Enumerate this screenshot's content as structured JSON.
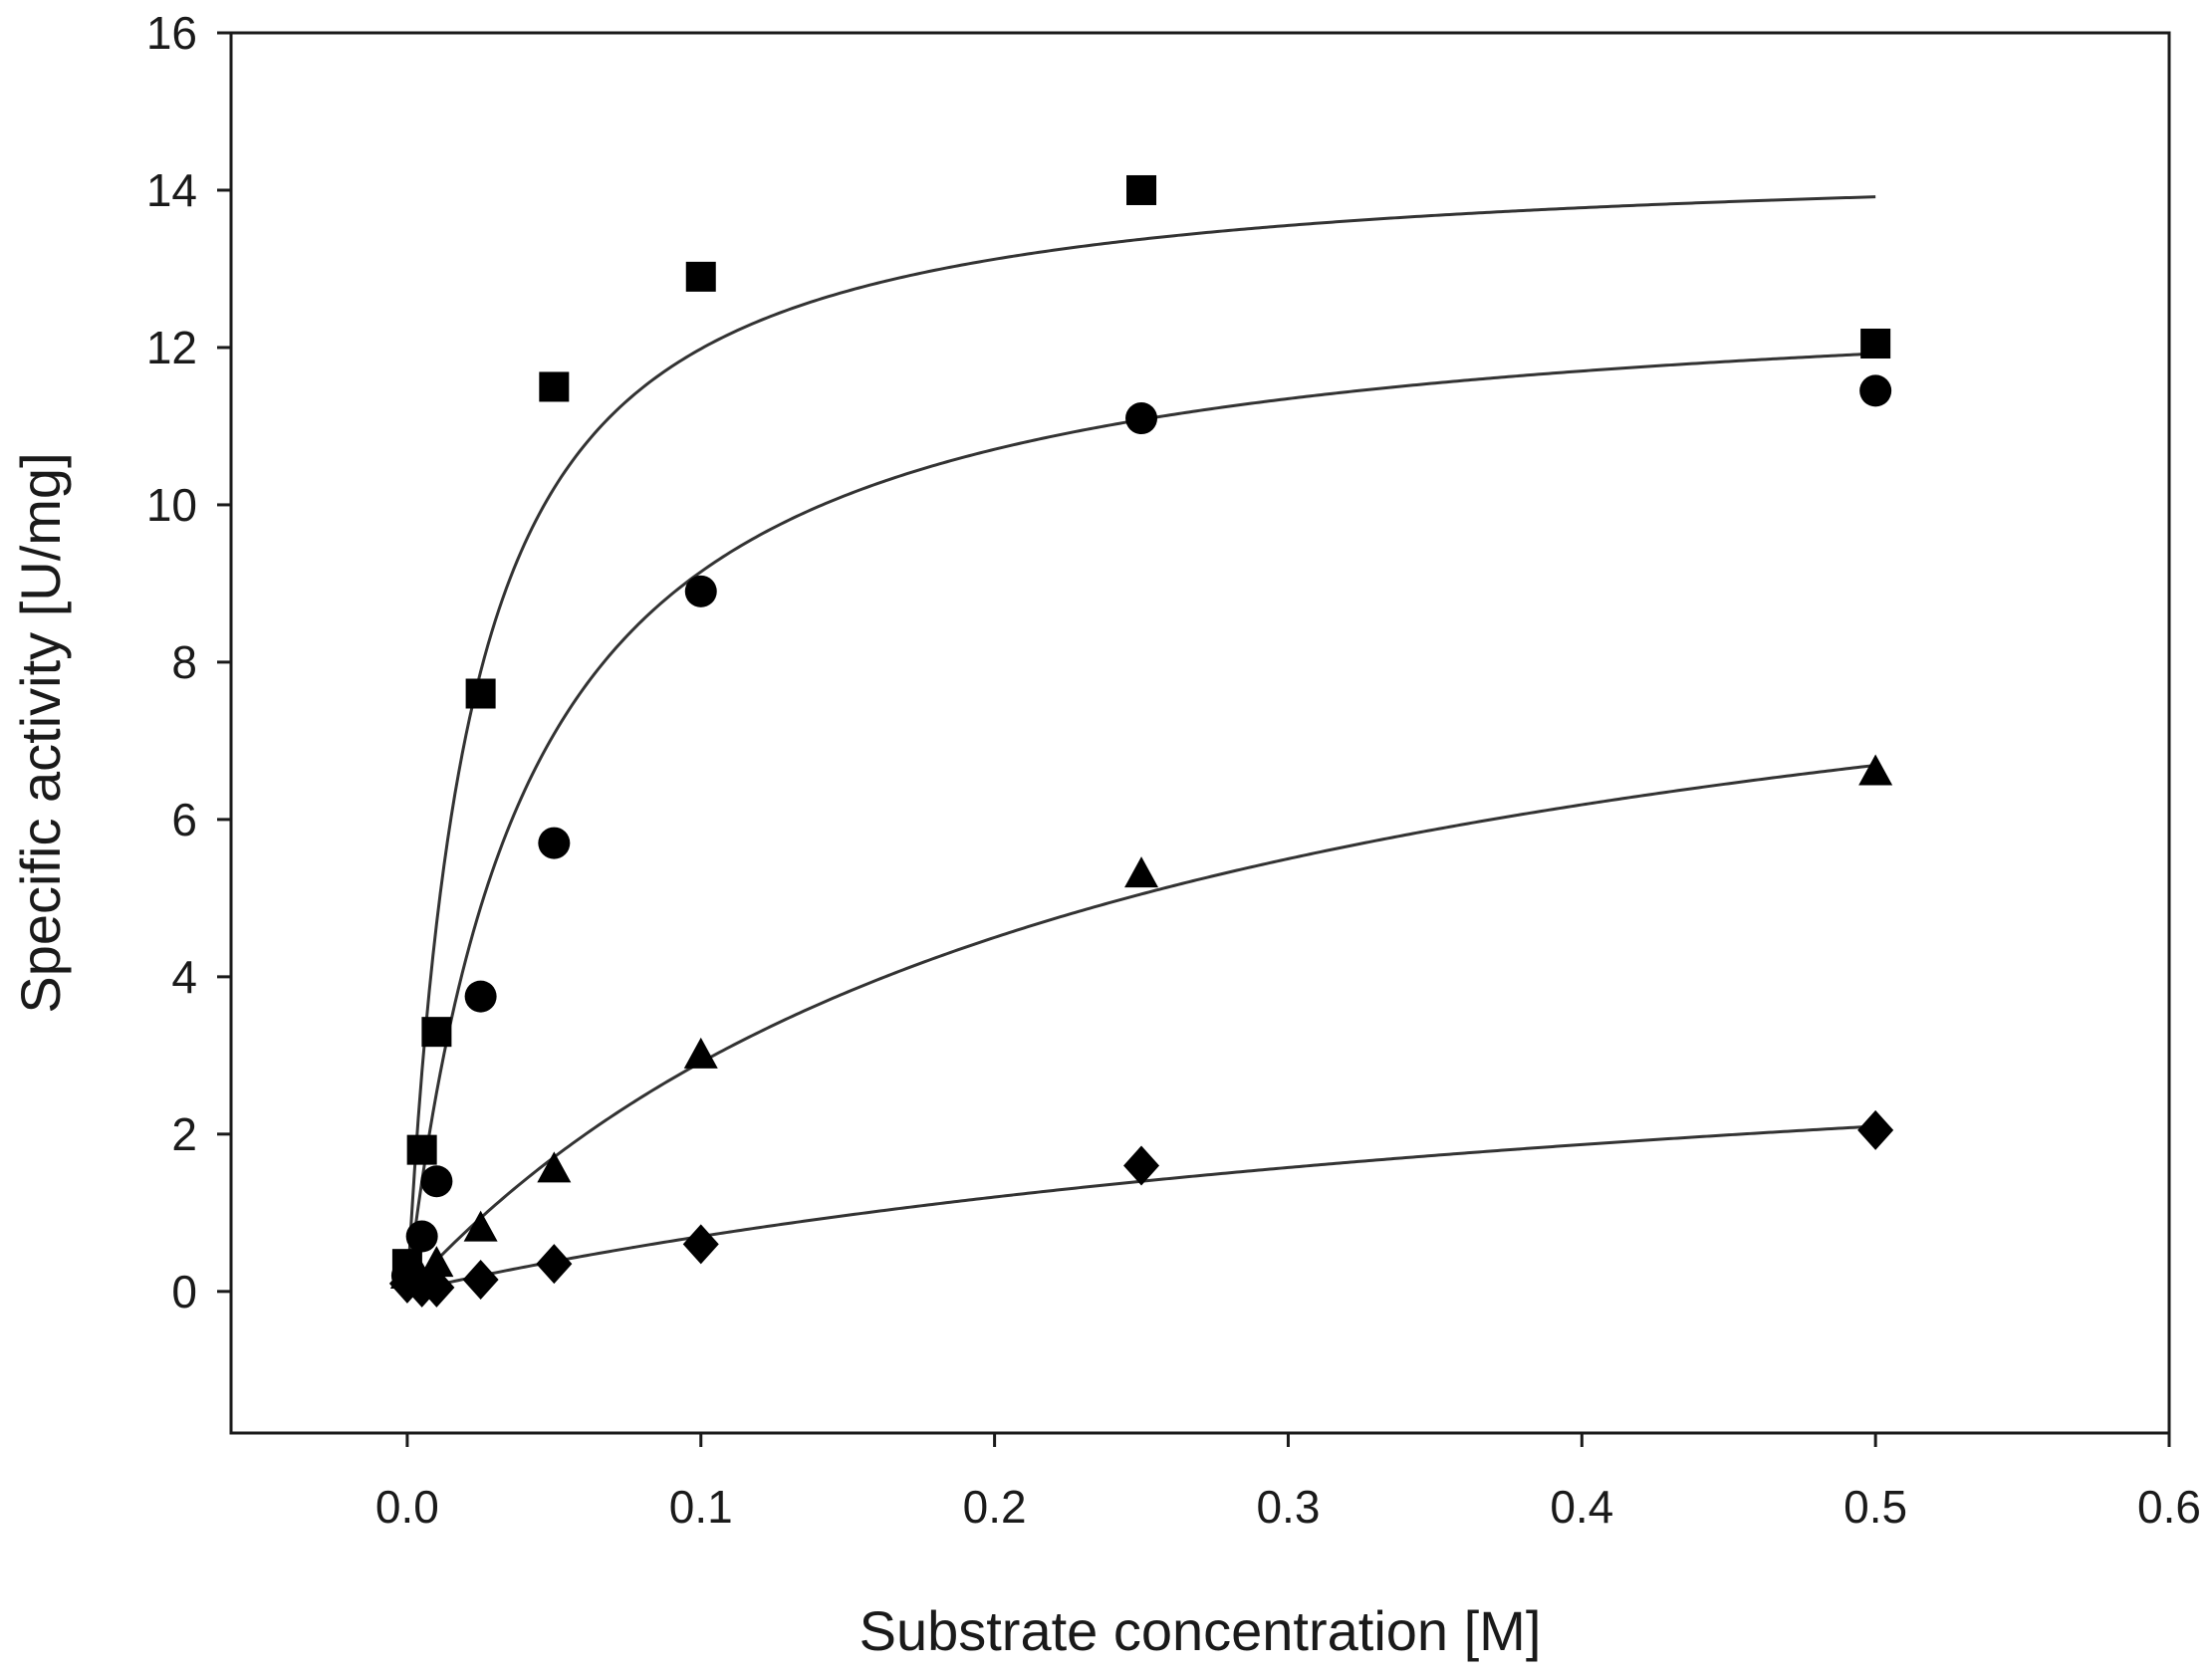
{
  "chart_data": {
    "type": "scatter",
    "title": "",
    "xlabel": "Substrate concentration [M]",
    "ylabel": "Specific activity [U/mg]",
    "xlim": [
      -0.06,
      0.6
    ],
    "ylim": [
      -1.8,
      16
    ],
    "xticks": [
      0.0,
      0.1,
      0.2,
      0.3,
      0.4,
      0.5,
      0.6
    ],
    "xtick_labels": [
      "0.0",
      "0.1",
      "0.2",
      "0.3",
      "0.4",
      "0.5",
      "0.6"
    ],
    "yticks": [
      0,
      2,
      4,
      6,
      8,
      10,
      12,
      14,
      16
    ],
    "ytick_labels": [
      "0",
      "2",
      "4",
      "6",
      "8",
      "10",
      "12",
      "14",
      "16"
    ],
    "grid": false,
    "series": [
      {
        "name": "square",
        "marker": "square",
        "x": [
          0.0,
          0.005,
          0.01,
          0.025,
          0.05,
          0.1,
          0.25,
          0.5
        ],
        "y": [
          0.35,
          1.8,
          3.3,
          7.6,
          11.5,
          12.9,
          14.0,
          12.05
        ],
        "fit": {
          "vmax": 14.5,
          "km": 0.021,
          "n": 1
        }
      },
      {
        "name": "circle",
        "marker": "circle",
        "x": [
          0.0,
          0.005,
          0.01,
          0.025,
          0.05,
          0.1,
          0.25,
          0.5
        ],
        "y": [
          0.2,
          0.7,
          1.4,
          3.75,
          5.7,
          8.9,
          11.1,
          11.45
        ],
        "fit": {
          "vmax": 12.9,
          "km": 0.041,
          "n": 1
        }
      },
      {
        "name": "triangle",
        "marker": "triangle",
        "x": [
          0.0,
          0.005,
          0.01,
          0.025,
          0.05,
          0.1,
          0.25,
          0.5
        ],
        "y": [
          0.2,
          0.15,
          0.35,
          0.8,
          1.55,
          3.0,
          5.3,
          6.6
        ],
        "fit": {
          "vmax": 9.9,
          "km": 0.24,
          "n": 1
        }
      },
      {
        "name": "diamond",
        "marker": "diamond",
        "x": [
          0.0,
          0.005,
          0.01,
          0.025,
          0.05,
          0.1,
          0.25,
          0.5
        ],
        "y": [
          0.1,
          0.05,
          0.05,
          0.15,
          0.35,
          0.6,
          1.6,
          2.05
        ],
        "fit": {
          "vmax": 4.2,
          "km": 0.5,
          "n": 1
        }
      }
    ]
  }
}
